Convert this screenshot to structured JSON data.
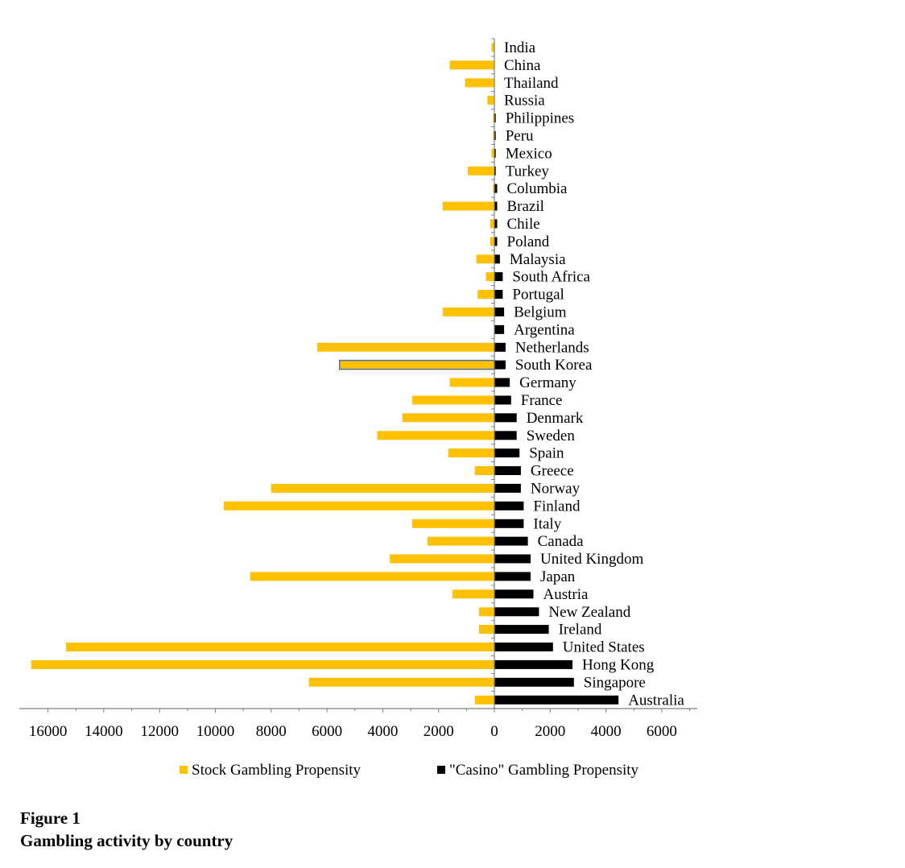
{
  "chart_data": {
    "type": "bar",
    "orientation": "horizontal",
    "categories": [
      "India",
      "China",
      "Thailand",
      "Russia",
      "Philippines",
      "Peru",
      "Mexico",
      "Turkey",
      "Columbia",
      "Brazil",
      "Chile",
      "Poland",
      "Malaysia",
      "South Africa",
      "Portugal",
      "Belgium",
      "Argentina",
      "Netherlands",
      "South Korea",
      "Germany",
      "France",
      "Denmark",
      "Sweden",
      "Spain",
      "Greece",
      "Norway",
      "Finland",
      "Italy",
      "Canada",
      "United Kingdom",
      "Japan",
      "Austria",
      "New Zealand",
      "Ireland",
      "United States",
      "Hong Kong",
      "Singapore",
      "Australia"
    ],
    "series": [
      {
        "name": "Stock Gambling Propensity",
        "color": "#FFC000",
        "direction": "left",
        "values": [
          100,
          1600,
          1050,
          250,
          50,
          50,
          100,
          950,
          50,
          1850,
          150,
          150,
          650,
          300,
          600,
          1850,
          0,
          6350,
          5550,
          1600,
          2950,
          3300,
          4200,
          1650,
          700,
          8000,
          9700,
          2950,
          2400,
          3750,
          8750,
          1500,
          550,
          550,
          15350,
          16600,
          6650,
          700
        ]
      },
      {
        "name": "\"Casino\" Gambling Propensity",
        "color": "#000000",
        "direction": "right",
        "values": [
          0,
          0,
          0,
          0,
          50,
          50,
          50,
          50,
          100,
          100,
          100,
          100,
          200,
          300,
          300,
          350,
          350,
          400,
          400,
          550,
          600,
          800,
          800,
          900,
          950,
          950,
          1050,
          1050,
          1200,
          1300,
          1300,
          1400,
          1600,
          1950,
          2100,
          2800,
          2850,
          4450
        ]
      }
    ],
    "highlight_category": "South Korea",
    "ticks": [
      "16000",
      "14000",
      "12000",
      "10000",
      "8000",
      "6000",
      "4000",
      "2000",
      "0",
      "2000",
      "4000",
      "6000"
    ],
    "legend_position": "bottom",
    "grid": false
  },
  "caption": {
    "number": "Figure 1",
    "title": "Gambling activity by country"
  }
}
